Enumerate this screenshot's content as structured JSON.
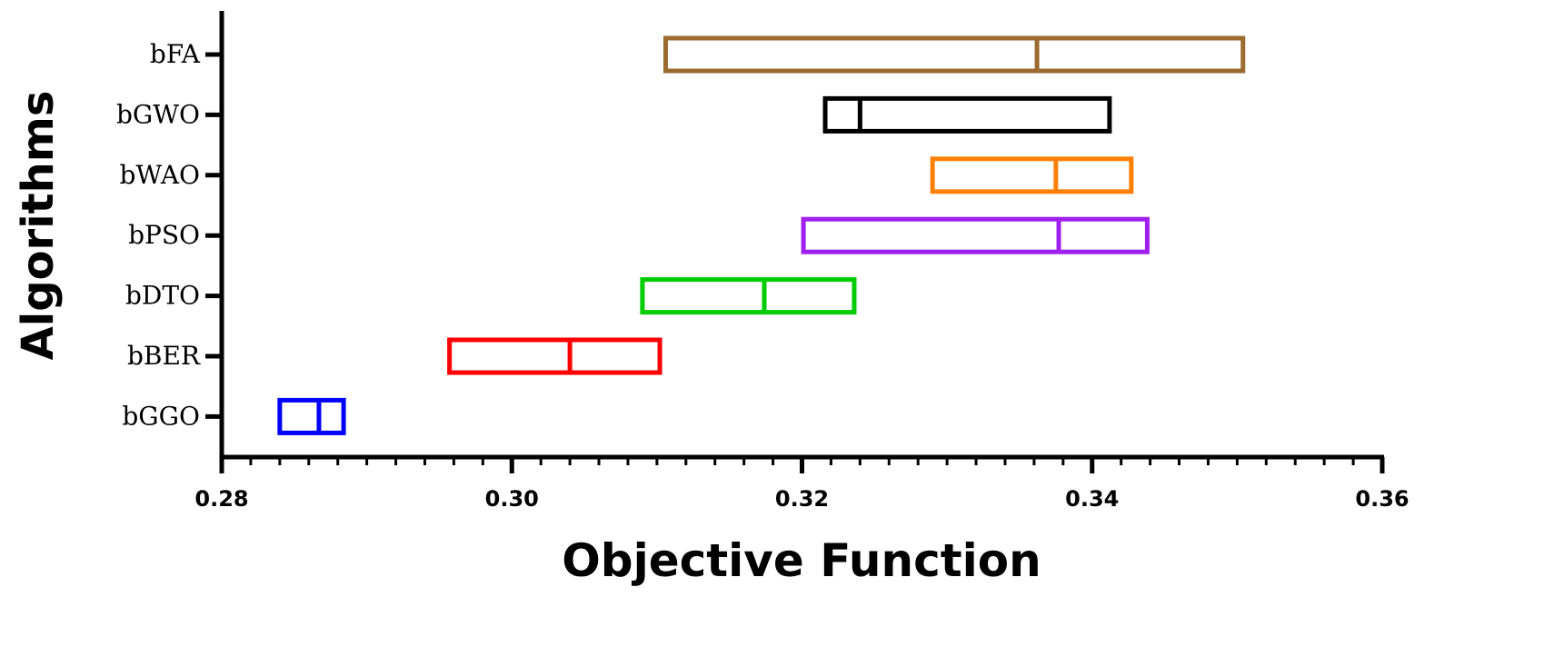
{
  "chart_data": {
    "type": "box",
    "xlabel": "Objective Function",
    "ylabel": "Algorithms",
    "xlim": [
      0.28,
      0.36
    ],
    "xticks": [
      0.28,
      0.3,
      0.32,
      0.34,
      0.36
    ],
    "xtick_labels": [
      "0.28",
      "0.30",
      "0.32",
      "0.34",
      "0.36"
    ],
    "xtick_minor_step": 0.002,
    "grid": false,
    "categories": [
      "bFA",
      "bGWO",
      "bWAO",
      "bPSO",
      "bDTO",
      "bBER",
      "bGGO"
    ],
    "series": [
      {
        "category": "bFA",
        "q1": 0.3106,
        "median": 0.3362,
        "q3": 0.3504,
        "color": "#9C6B30"
      },
      {
        "category": "bGWO",
        "q1": 0.3216,
        "median": 0.324,
        "q3": 0.3412,
        "color": "#000000"
      },
      {
        "category": "bWAO",
        "q1": 0.329,
        "median": 0.3375,
        "q3": 0.3427,
        "color": "#FF8000"
      },
      {
        "category": "bPSO",
        "q1": 0.3201,
        "median": 0.3377,
        "q3": 0.3438,
        "color": "#A020F0"
      },
      {
        "category": "bDTO",
        "q1": 0.309,
        "median": 0.3174,
        "q3": 0.3236,
        "color": "#00CC00"
      },
      {
        "category": "bBER",
        "q1": 0.2957,
        "median": 0.304,
        "q3": 0.3102,
        "color": "#FF0000"
      },
      {
        "category": "bGGO",
        "q1": 0.284,
        "median": 0.2867,
        "q3": 0.2884,
        "color": "#0000FF"
      }
    ]
  }
}
